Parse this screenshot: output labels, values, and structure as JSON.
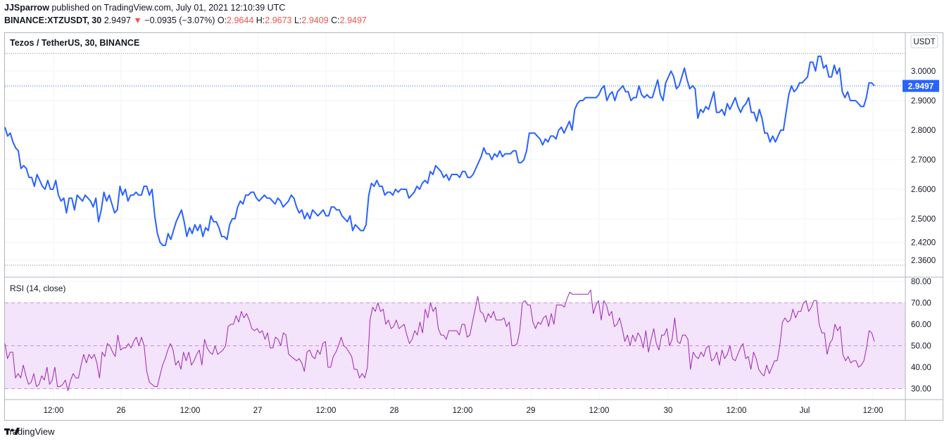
{
  "header": {
    "author": "JJSparrow",
    "published_text": "published on TradingView.com, July 01, 2021 12:10:39 UTC",
    "symbol": "BINANCE:XTZUSDT, 30",
    "last": "2.9497",
    "arrow": "▼",
    "change": "−0.0935 (−3.07%)",
    "o_label": "O:",
    "o_value": "2.9644",
    "h_label": "H:",
    "h_value": "2.9673",
    "l_label": "L:",
    "l_value": "2.9409",
    "c_label": "C:",
    "c_value": "2.9497"
  },
  "footer": {
    "brand": "TradingView"
  },
  "chart_data": [
    {
      "type": "line",
      "title": "Tezos / TetherUS, 30, BINANCE",
      "currency_label": "USDT",
      "last_price_label": "2.9497",
      "line_color": "#2962ff",
      "y_ticks": [
        3.0,
        2.9,
        2.8,
        2.7,
        2.6,
        2.5,
        2.42,
        2.36
      ],
      "y_tick_labels": [
        "3.0000",
        "2.9000",
        "2.8000",
        "2.7000",
        "2.6000",
        "2.5000",
        "2.4200",
        "2.3600"
      ],
      "x_tick_labels": [
        "12:00",
        "26",
        "12:00",
        "27",
        "12:00",
        "28",
        "12:00",
        "29",
        "12:00",
        "30",
        "12:00",
        "Jul",
        "12:00"
      ],
      "values": [
        2.81,
        2.78,
        2.79,
        2.76,
        2.74,
        2.73,
        2.67,
        2.68,
        2.67,
        2.64,
        2.64,
        2.61,
        2.65,
        2.63,
        2.61,
        2.6,
        2.63,
        2.6,
        2.6,
        2.63,
        2.58,
        2.56,
        2.57,
        2.52,
        2.57,
        2.57,
        2.53,
        2.58,
        2.57,
        2.56,
        2.58,
        2.57,
        2.56,
        2.54,
        2.57,
        2.49,
        2.53,
        2.59,
        2.56,
        2.58,
        2.55,
        2.52,
        2.53,
        2.61,
        2.58,
        2.6,
        2.56,
        2.58,
        2.58,
        2.59,
        2.58,
        2.58,
        2.61,
        2.61,
        2.58,
        2.6,
        2.51,
        2.45,
        2.42,
        2.41,
        2.41,
        2.45,
        2.43,
        2.46,
        2.49,
        2.51,
        2.53,
        2.49,
        2.44,
        2.47,
        2.45,
        2.48,
        2.46,
        2.48,
        2.44,
        2.47,
        2.46,
        2.51,
        2.49,
        2.49,
        2.47,
        2.44,
        2.44,
        2.43,
        2.48,
        2.5,
        2.5,
        2.54,
        2.56,
        2.55,
        2.58,
        2.58,
        2.59,
        2.59,
        2.57,
        2.56,
        2.57,
        2.58,
        2.57,
        2.57,
        2.56,
        2.55,
        2.57,
        2.56,
        2.54,
        2.55,
        2.56,
        2.58,
        2.57,
        2.54,
        2.52,
        2.53,
        2.5,
        2.52,
        2.5,
        2.53,
        2.52,
        2.51,
        2.52,
        2.53,
        2.51,
        2.51,
        2.54,
        2.54,
        2.53,
        2.53,
        2.51,
        2.5,
        2.49,
        2.51,
        2.46,
        2.48,
        2.47,
        2.46,
        2.46,
        2.48,
        2.58,
        2.62,
        2.61,
        2.63,
        2.61,
        2.61,
        2.58,
        2.59,
        2.59,
        2.58,
        2.6,
        2.59,
        2.6,
        2.6,
        2.6,
        2.57,
        2.58,
        2.59,
        2.61,
        2.6,
        2.62,
        2.63,
        2.62,
        2.66,
        2.65,
        2.68,
        2.67,
        2.66,
        2.64,
        2.65,
        2.63,
        2.65,
        2.65,
        2.65,
        2.64,
        2.66,
        2.66,
        2.64,
        2.64,
        2.65,
        2.67,
        2.69,
        2.71,
        2.74,
        2.72,
        2.72,
        2.7,
        2.72,
        2.71,
        2.73,
        2.71,
        2.72,
        2.72,
        2.72,
        2.73,
        2.73,
        2.69,
        2.69,
        2.7,
        2.73,
        2.79,
        2.79,
        2.79,
        2.78,
        2.77,
        2.75,
        2.77,
        2.76,
        2.78,
        2.78,
        2.77,
        2.8,
        2.81,
        2.79,
        2.81,
        2.83,
        2.8,
        2.87,
        2.89,
        2.9,
        2.9,
        2.91,
        2.91,
        2.91,
        2.91,
        2.91,
        2.92,
        2.94,
        2.95,
        2.9,
        2.92,
        2.93,
        2.9,
        2.93,
        2.94,
        2.95,
        2.93,
        2.93,
        2.9,
        2.91,
        2.91,
        2.95,
        2.92,
        2.91,
        2.92,
        2.91,
        2.91,
        2.94,
        2.97,
        2.92,
        2.9,
        2.96,
        2.98,
        3.0,
        2.98,
        2.94,
        2.95,
        2.98,
        3.01,
        2.97,
        2.94,
        2.95,
        2.94,
        2.84,
        2.87,
        2.86,
        2.88,
        2.87,
        2.9,
        2.93,
        2.86,
        2.86,
        2.87,
        2.85,
        2.89,
        2.87,
        2.89,
        2.91,
        2.88,
        2.86,
        2.88,
        2.89,
        2.91,
        2.86,
        2.86,
        2.83,
        2.87,
        2.84,
        2.79,
        2.79,
        2.76,
        2.78,
        2.76,
        2.78,
        2.8,
        2.8,
        2.86,
        2.92,
        2.95,
        2.93,
        2.94,
        2.96,
        2.96,
        2.97,
        2.98,
        3.03,
        3.03,
        3.0,
        3.05,
        3.05,
        3.01,
        3.02,
        2.98,
        2.98,
        3.02,
        2.99,
        3.01,
        2.93,
        2.91,
        2.93,
        2.9,
        2.9,
        2.9,
        2.89,
        2.88,
        2.88,
        2.91,
        2.96,
        2.96,
        2.95
      ]
    },
    {
      "type": "line",
      "title": "RSI (14, close)",
      "line_color": "#9c27b0",
      "band": [
        30,
        70
      ],
      "midline": 50,
      "y_ticks": [
        80,
        70,
        60,
        50,
        40,
        30
      ],
      "y_tick_labels": [
        "80.00",
        "70.00",
        "60.00",
        "50.00",
        "40.00",
        "30.00"
      ],
      "values": [
        51,
        44,
        47,
        47,
        35,
        37,
        35,
        41,
        36,
        32,
        33,
        37,
        31,
        32,
        36,
        34,
        40,
        32,
        34,
        40,
        31,
        31,
        32,
        34,
        29,
        34,
        37,
        35,
        35,
        41,
        46,
        42,
        46,
        44,
        46,
        42,
        35,
        47,
        45,
        51,
        50,
        47,
        45,
        55,
        48,
        49,
        49,
        51,
        49,
        52,
        54,
        50,
        54,
        50,
        38,
        33,
        32,
        31,
        31,
        36,
        41,
        44,
        48,
        51,
        48,
        41,
        43,
        39,
        47,
        43,
        47,
        41,
        43,
        46,
        48,
        41,
        53,
        49,
        47,
        46,
        50,
        46,
        47,
        48,
        50,
        59,
        60,
        60,
        64,
        61,
        66,
        63,
        65,
        62,
        58,
        57,
        58,
        56,
        57,
        53,
        56,
        49,
        49,
        54,
        53,
        50,
        56,
        55,
        46,
        45,
        44,
        43,
        44,
        42,
        38,
        47,
        48,
        45,
        44,
        48,
        46,
        51,
        52,
        40,
        40,
        45,
        47,
        50,
        54,
        50,
        49,
        47,
        45,
        39,
        39,
        35,
        37,
        35,
        40,
        62,
        68,
        66,
        70,
        66,
        67,
        60,
        62,
        58,
        59,
        62,
        58,
        59,
        60,
        55,
        51,
        53,
        57,
        55,
        61,
        56,
        67,
        63,
        70,
        66,
        68,
        58,
        55,
        55,
        53,
        57,
        57,
        57,
        57,
        55,
        60,
        60,
        54,
        55,
        61,
        67,
        73,
        66,
        65,
        61,
        65,
        63,
        66,
        62,
        62,
        62,
        63,
        59,
        61,
        50,
        50,
        51,
        57,
        70,
        71,
        69,
        69,
        61,
        58,
        61,
        60,
        63,
        64,
        59,
        65,
        60,
        69,
        69,
        69,
        68,
        72,
        75,
        74,
        74,
        74,
        74,
        74,
        74,
        74,
        76,
        65,
        69,
        71,
        62,
        71,
        69,
        64,
        66,
        59,
        60,
        63,
        58,
        52,
        55,
        50,
        55,
        52,
        56,
        54,
        49,
        57,
        47,
        53,
        58,
        51,
        48,
        55,
        55,
        58,
        50,
        53,
        63,
        52,
        51,
        55,
        55,
        53,
        39,
        47,
        45,
        44,
        47,
        45,
        49,
        50,
        43,
        44,
        47,
        41,
        48,
        44,
        46,
        50,
        44,
        43,
        46,
        49,
        51,
        44,
        45,
        39,
        47,
        44,
        39,
        37,
        36,
        41,
        37,
        40,
        43,
        43,
        50,
        61,
        63,
        61,
        62,
        67,
        63,
        66,
        66,
        70,
        71,
        66,
        68,
        71,
        71,
        60,
        56,
        56,
        46,
        51,
        53,
        60,
        57,
        59,
        46,
        43,
        45,
        42,
        43,
        43,
        40,
        41,
        43,
        49,
        57,
        56,
        52
      ]
    }
  ]
}
